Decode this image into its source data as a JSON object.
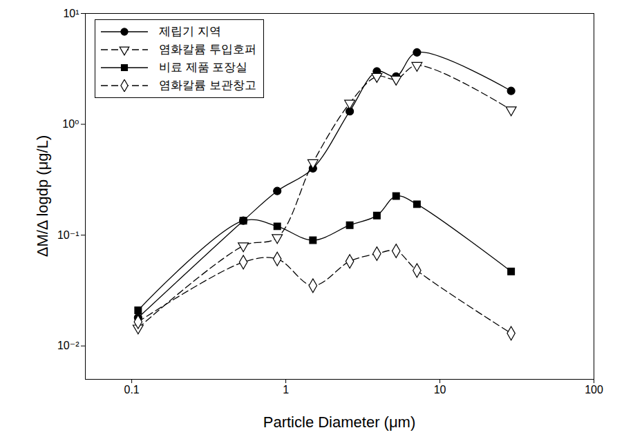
{
  "chart_data": {
    "type": "line",
    "xlabel": "Particle Diameter (μm)",
    "ylabel": "ΔM/Δ logdp (μg/L)",
    "log": true,
    "grid": false,
    "legend": "top-left",
    "x": [
      0.11,
      0.53,
      0.88,
      1.5,
      2.6,
      3.9,
      5.2,
      7.1,
      29
    ],
    "xlim": [
      0.05,
      100
    ],
    "xticks": [
      0.1,
      1,
      10,
      100
    ],
    "ylim": [
      0.005,
      10
    ],
    "yticks": [
      {
        "value": 0.01,
        "label": "10⁻²"
      },
      {
        "value": 0.1,
        "label": "10⁻¹"
      },
      {
        "value": 1,
        "label": "10⁰"
      },
      {
        "value": 10,
        "label": "10¹"
      }
    ],
    "series": [
      {
        "name": "제립기 지역",
        "color": "#000000",
        "marker": "circle",
        "line_style": "solid",
        "values": [
          0.018,
          0.135,
          0.25,
          0.4,
          1.31,
          3.0,
          2.7,
          4.45,
          2.0
        ]
      },
      {
        "name": "염화칼륨 투입호퍼",
        "color": "#000000",
        "marker": "open_triangle_down",
        "line_style": "dashed",
        "values": [
          0.0145,
          0.08,
          0.095,
          0.45,
          1.55,
          2.7,
          2.55,
          3.4,
          1.35
        ]
      },
      {
        "name": "비료 제품 포장실",
        "color": "#000000",
        "marker": "square",
        "line_style": "solid",
        "values": [
          0.021,
          0.135,
          0.12,
          0.09,
          0.123,
          0.15,
          0.225,
          0.19,
          0.047
        ]
      },
      {
        "name": "염화칼륨 보관창고",
        "color": "#000000",
        "marker": "open_diamond",
        "line_style": "dashed",
        "values": [
          0.0165,
          0.057,
          0.061,
          0.035,
          0.058,
          0.068,
          0.072,
          0.048,
          0.013
        ]
      }
    ]
  }
}
